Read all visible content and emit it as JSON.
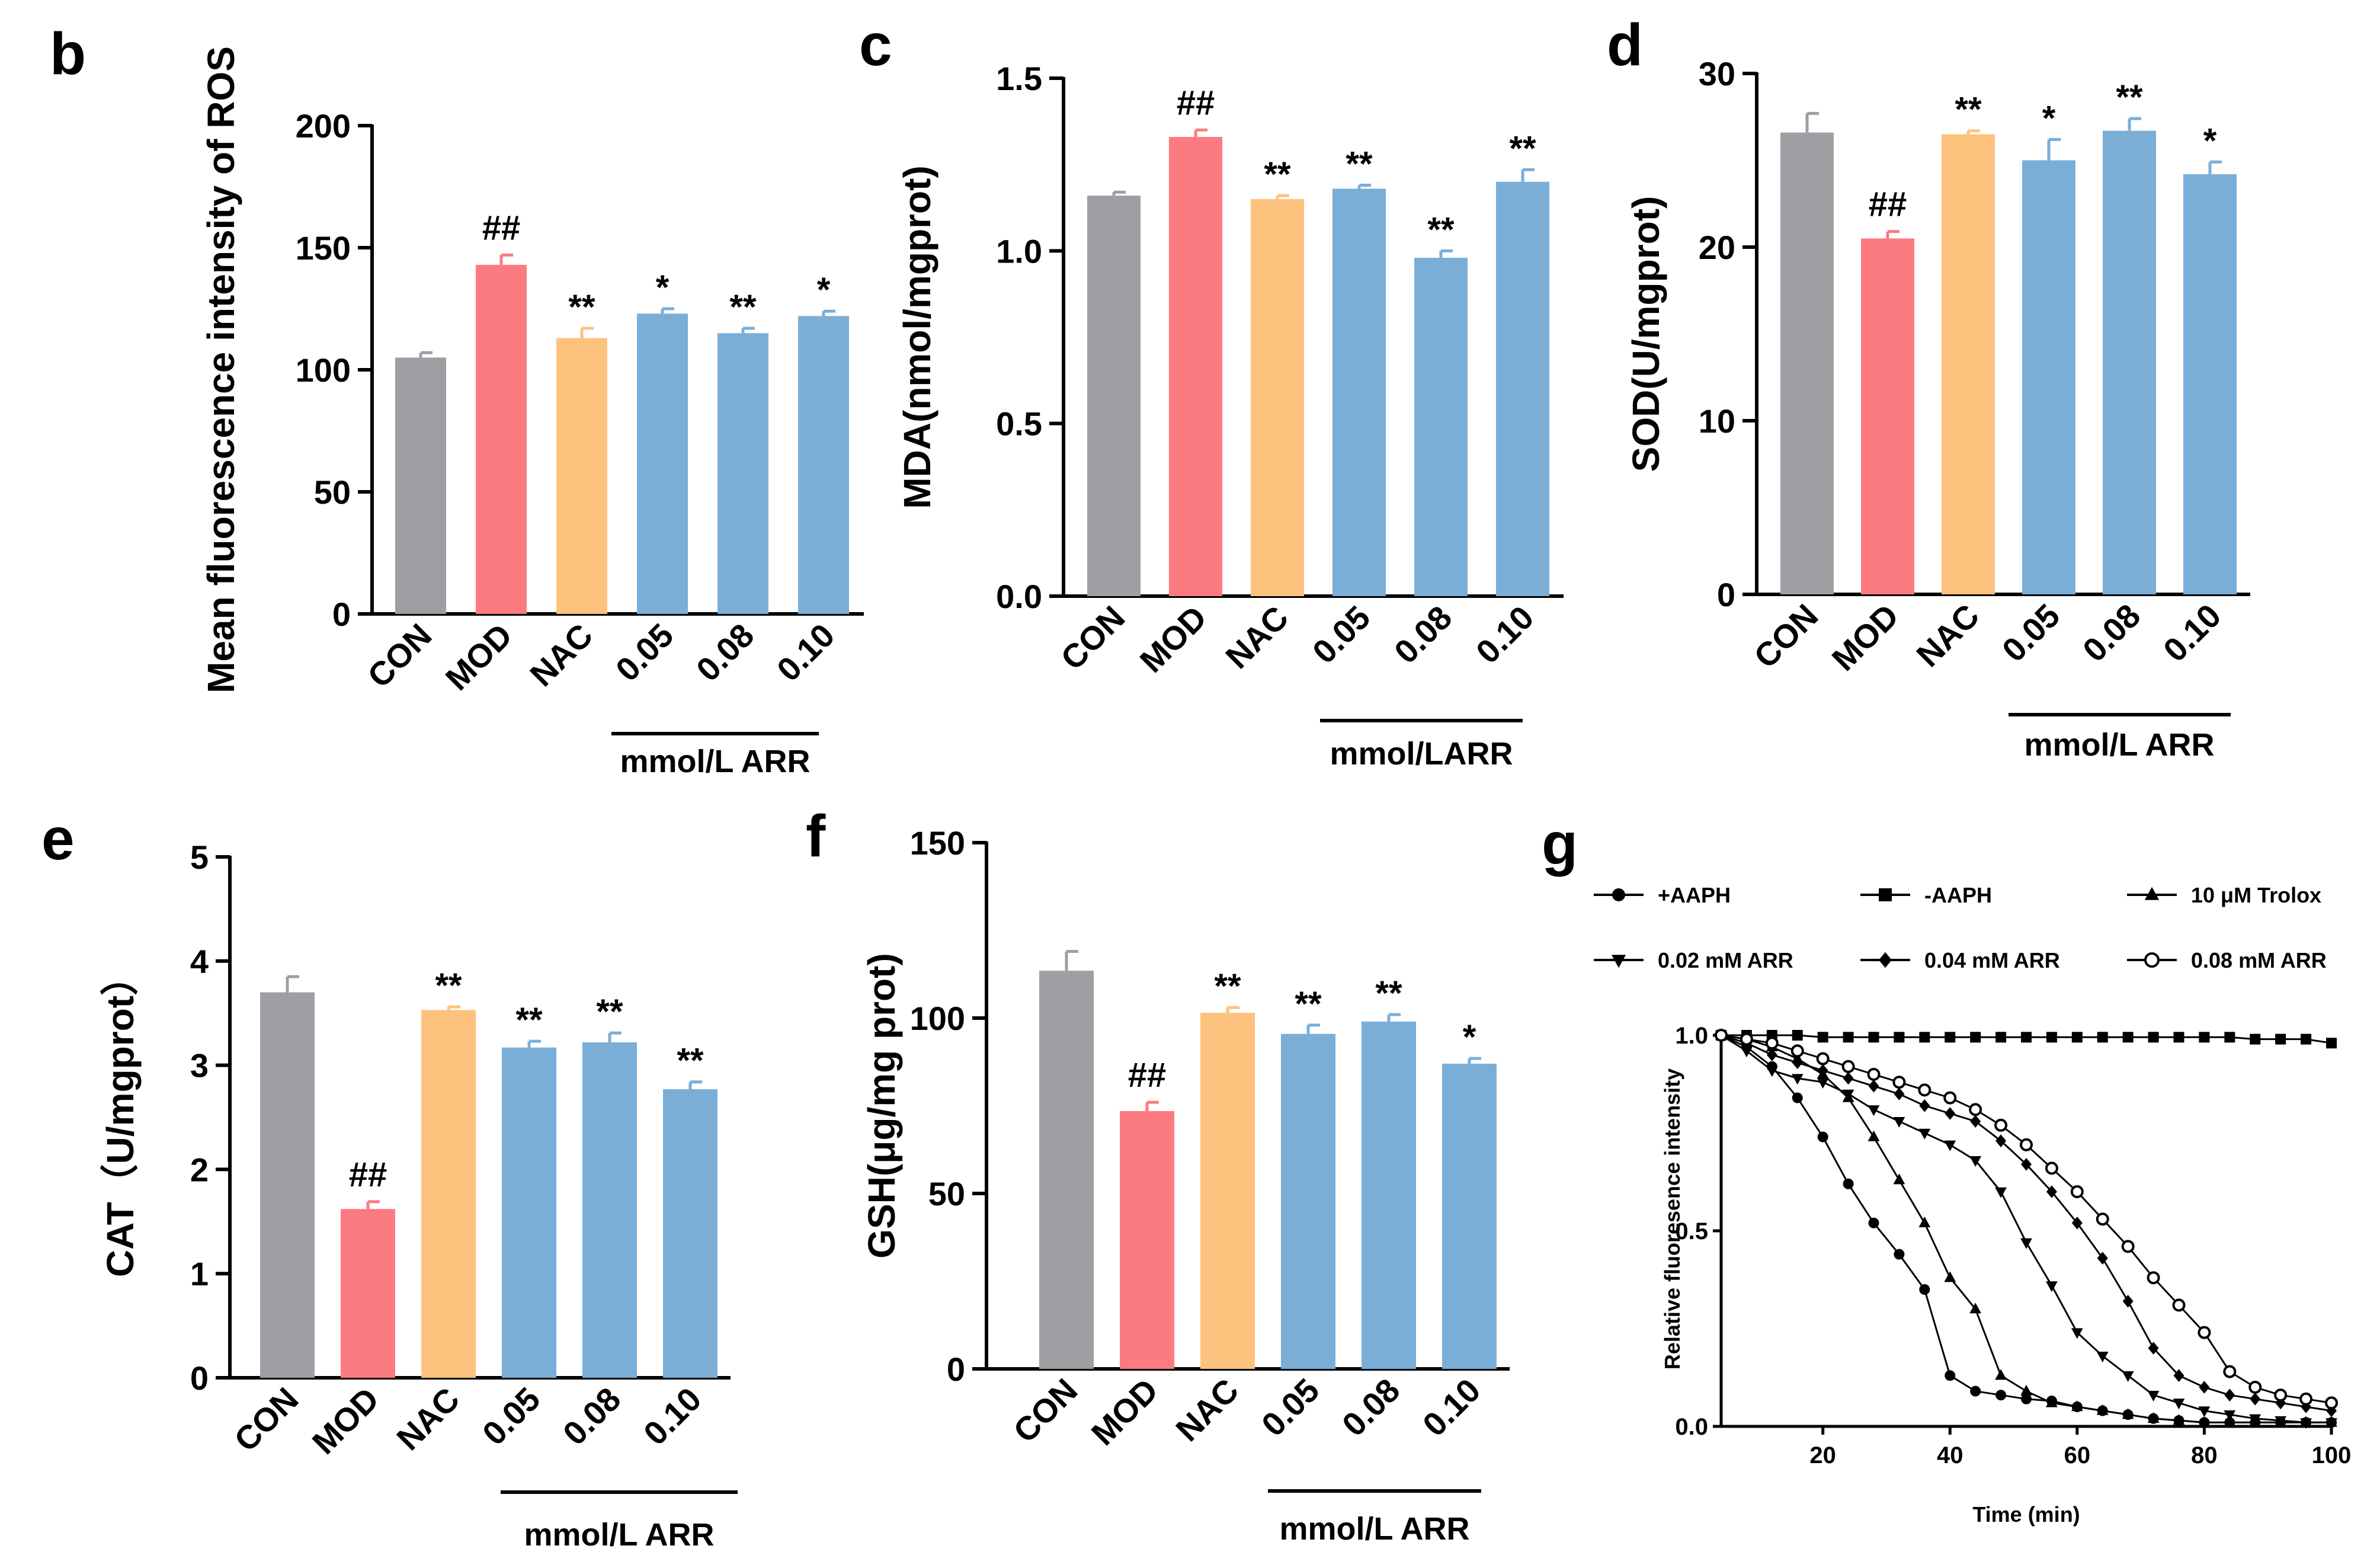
{
  "bar_colors": {
    "CON": "#a09ea3",
    "MOD": "#fc7b81",
    "NAC": "#fdc27d",
    "ARR": "#7aaed7"
  },
  "chart_data": [
    {
      "panel": "b",
      "type": "bar",
      "categories": [
        "CON",
        "MOD",
        "NAC",
        "0.05",
        "0.08",
        "0.10"
      ],
      "values": [
        105,
        143,
        113,
        123,
        115,
        122
      ],
      "errors": [
        2,
        4,
        4,
        2,
        2,
        2
      ],
      "significance": [
        "",
        "##",
        "**",
        "*",
        "**",
        "*"
      ],
      "ylabel": "Mean fluorescence intensity of ROS",
      "ylim": [
        0,
        200
      ],
      "yticks": [
        "0",
        "50",
        "100",
        "150",
        "200"
      ],
      "group_label": "mmol/L ARR"
    },
    {
      "panel": "c",
      "type": "bar",
      "categories": [
        "CON",
        "MOD",
        "NAC",
        "0.05",
        "0.08",
        "0.10"
      ],
      "values": [
        1.16,
        1.33,
        1.15,
        1.18,
        0.98,
        1.2
      ],
      "errors": [
        0.01,
        0.02,
        0.01,
        0.01,
        0.02,
        0.035
      ],
      "significance": [
        "",
        "##",
        "**",
        "**",
        "**",
        "**"
      ],
      "ylabel": "MDA(nmol/mgprot)",
      "ylim": [
        0,
        1.5
      ],
      "yticks": [
        "0.0",
        "0.5",
        "1.0",
        "1.5"
      ],
      "group_label": "mmol/LARR"
    },
    {
      "panel": "d",
      "type": "bar",
      "categories": [
        "CON",
        "MOD",
        "NAC",
        "0.05",
        "0.08",
        "0.10"
      ],
      "values": [
        26.6,
        20.5,
        26.5,
        25.0,
        26.7,
        24.2
      ],
      "errors": [
        1.1,
        0.4,
        0.2,
        1.2,
        0.7,
        0.7
      ],
      "significance": [
        "",
        "##",
        "**",
        "*",
        "**",
        "*"
      ],
      "ylabel": "SOD(U/mgprot)",
      "ylim": [
        0,
        30
      ],
      "yticks": [
        "0",
        "10",
        "20",
        "30"
      ],
      "group_label": "mmol/L ARR"
    },
    {
      "panel": "e",
      "type": "bar",
      "categories": [
        "CON",
        "MOD",
        "NAC",
        "0.05",
        "0.08",
        "0.10"
      ],
      "values": [
        3.7,
        1.62,
        3.53,
        3.17,
        3.22,
        2.77
      ],
      "errors": [
        0.15,
        0.07,
        0.03,
        0.06,
        0.09,
        0.07
      ],
      "significance": [
        "",
        "##",
        "**",
        "**",
        "**",
        "**"
      ],
      "ylabel": "CAT（U/mgprot）",
      "ylim": [
        0,
        5
      ],
      "yticks": [
        "0",
        "1",
        "2",
        "3",
        "4",
        "5"
      ],
      "group_label": "mmol/L ARR"
    },
    {
      "panel": "f",
      "type": "bar",
      "categories": [
        "CON",
        "MOD",
        "NAC",
        "0.05",
        "0.08",
        "0.10"
      ],
      "values": [
        113.5,
        73.5,
        101.5,
        95.5,
        99,
        87
      ],
      "errors": [
        5.5,
        2.5,
        1.5,
        2.5,
        2,
        1.5
      ],
      "significance": [
        "",
        "##",
        "**",
        "**",
        "**",
        "*"
      ],
      "ylabel": "GSH(μg/mg prot)",
      "ylim": [
        0,
        150
      ],
      "yticks": [
        "0",
        "50",
        "100",
        "150"
      ],
      "group_label": "mmol/L ARR"
    },
    {
      "panel": "g",
      "type": "line",
      "xlabel": "Time (min)",
      "ylabel": "Relative fluoresence intensity",
      "xlim": [
        4,
        100
      ],
      "ylim": [
        0,
        1.0
      ],
      "xticks": [
        "20",
        "40",
        "60",
        "80",
        "100"
      ],
      "yticks": [
        "0.0",
        "0.5",
        "1.0"
      ],
      "series": [
        {
          "name": "+AAPH",
          "marker": "circle",
          "x": [
            4,
            8,
            12,
            16,
            20,
            24,
            28,
            32,
            36,
            40,
            44,
            48,
            52,
            56,
            60,
            64,
            68,
            72,
            76,
            80,
            84,
            88,
            92,
            96,
            100
          ],
          "y": [
            1.0,
            0.97,
            0.92,
            0.84,
            0.74,
            0.62,
            0.52,
            0.44,
            0.35,
            0.13,
            0.09,
            0.08,
            0.07,
            0.065,
            0.05,
            0.04,
            0.03,
            0.02,
            0.015,
            0.01,
            0.01,
            0.01,
            0.01,
            0.01,
            0.01
          ]
        },
        {
          "name": "-AAPH",
          "marker": "square",
          "x": [
            4,
            8,
            12,
            16,
            20,
            24,
            28,
            32,
            36,
            40,
            44,
            48,
            52,
            56,
            60,
            64,
            68,
            72,
            76,
            80,
            84,
            88,
            92,
            96,
            100
          ],
          "y": [
            1.0,
            1.0,
            1.0,
            1.0,
            0.995,
            0.995,
            0.995,
            0.995,
            0.995,
            0.995,
            0.995,
            0.995,
            0.995,
            0.995,
            0.995,
            0.995,
            0.995,
            0.995,
            0.995,
            0.995,
            0.995,
            0.99,
            0.99,
            0.99,
            0.98
          ]
        },
        {
          "name": "10 μM Trolox",
          "marker": "triangle-up",
          "x": [
            4,
            8,
            12,
            16,
            20,
            24,
            28,
            32,
            36,
            40,
            44,
            48,
            52,
            56,
            60,
            64,
            68,
            72,
            76,
            80,
            84,
            88,
            92,
            96,
            100
          ],
          "y": [
            1.0,
            0.99,
            0.97,
            0.94,
            0.9,
            0.84,
            0.74,
            0.63,
            0.52,
            0.38,
            0.3,
            0.13,
            0.09,
            0.06,
            0.05,
            0.04,
            0.03,
            0.02,
            0.015,
            0.01,
            0.01,
            0.01,
            0.01,
            0.01,
            0.01
          ]
        },
        {
          "name": "0.02 mM ARR",
          "marker": "triangle-down",
          "x": [
            4,
            8,
            12,
            16,
            20,
            24,
            28,
            32,
            36,
            40,
            44,
            48,
            52,
            56,
            60,
            64,
            68,
            72,
            76,
            80,
            84,
            88,
            92,
            96,
            100
          ],
          "y": [
            1.0,
            0.96,
            0.91,
            0.89,
            0.88,
            0.85,
            0.81,
            0.78,
            0.75,
            0.72,
            0.68,
            0.6,
            0.47,
            0.36,
            0.24,
            0.18,
            0.13,
            0.08,
            0.06,
            0.04,
            0.03,
            0.02,
            0.015,
            0.01,
            0.01
          ]
        },
        {
          "name": "0.04 mM ARR",
          "marker": "diamond",
          "x": [
            4,
            8,
            12,
            16,
            20,
            24,
            28,
            32,
            36,
            40,
            44,
            48,
            52,
            56,
            60,
            64,
            68,
            72,
            76,
            80,
            84,
            88,
            92,
            96,
            100
          ],
          "y": [
            1.0,
            0.98,
            0.95,
            0.93,
            0.91,
            0.89,
            0.87,
            0.85,
            0.82,
            0.8,
            0.78,
            0.73,
            0.67,
            0.6,
            0.52,
            0.43,
            0.32,
            0.2,
            0.13,
            0.1,
            0.08,
            0.07,
            0.06,
            0.05,
            0.04
          ]
        },
        {
          "name": "0.08 mM ARR",
          "marker": "circle-open",
          "x": [
            4,
            8,
            12,
            16,
            20,
            24,
            28,
            32,
            36,
            40,
            44,
            48,
            52,
            56,
            60,
            64,
            68,
            72,
            76,
            80,
            84,
            88,
            92,
            96,
            100
          ],
          "y": [
            1.0,
            0.99,
            0.98,
            0.96,
            0.94,
            0.92,
            0.9,
            0.88,
            0.86,
            0.84,
            0.81,
            0.77,
            0.72,
            0.66,
            0.6,
            0.53,
            0.46,
            0.38,
            0.31,
            0.24,
            0.14,
            0.1,
            0.08,
            0.07,
            0.06
          ]
        }
      ]
    }
  ]
}
